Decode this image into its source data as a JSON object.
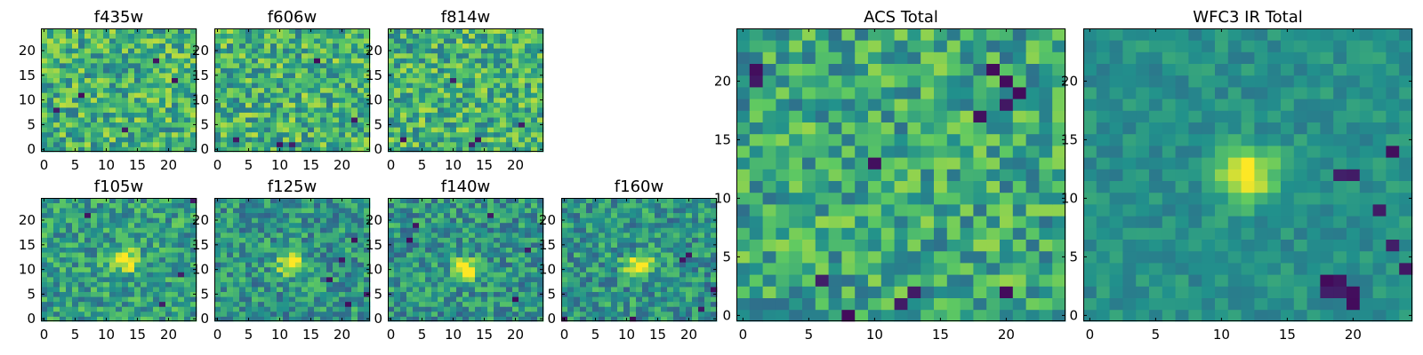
{
  "figure": {
    "background": "#ffffff"
  },
  "colormap": {
    "name": "viridis",
    "stops": [
      "#440154",
      "#3b528b",
      "#21918c",
      "#5ec962",
      "#fde725"
    ]
  },
  "chart_data": [
    {
      "id": "f435w",
      "type": "heatmap",
      "title": "f435w",
      "grid": [
        25,
        25
      ],
      "xlim": [
        0,
        24
      ],
      "ylim": [
        0,
        24
      ],
      "xticks": [
        0,
        5,
        10,
        15,
        20
      ],
      "yticks": [
        0,
        5,
        10,
        15,
        20
      ],
      "peak": null,
      "noise": 0.26,
      "base": 0.64,
      "seed": 11,
      "dark_spots": [
        [
          13,
          4
        ],
        [
          6,
          11
        ],
        [
          18,
          18
        ],
        [
          2,
          8
        ],
        [
          21,
          14
        ]
      ]
    },
    {
      "id": "f606w",
      "type": "heatmap",
      "title": "f606w",
      "grid": [
        25,
        25
      ],
      "xlim": [
        0,
        24
      ],
      "ylim": [
        0,
        24
      ],
      "xticks": [
        0,
        5,
        10,
        15,
        20
      ],
      "yticks": [
        0,
        5,
        10,
        15,
        20
      ],
      "peak": null,
      "noise": 0.26,
      "base": 0.64,
      "seed": 23,
      "dark_spots": [
        [
          12,
          1
        ],
        [
          10,
          1
        ],
        [
          3,
          2
        ],
        [
          16,
          18
        ],
        [
          22,
          6
        ]
      ]
    },
    {
      "id": "f814w",
      "type": "heatmap",
      "title": "f814w",
      "grid": [
        25,
        25
      ],
      "xlim": [
        0,
        24
      ],
      "ylim": [
        0,
        24
      ],
      "xticks": [
        0,
        5,
        10,
        15,
        20
      ],
      "yticks": [
        0,
        5,
        10,
        15,
        20
      ],
      "peak": null,
      "noise": 0.26,
      "base": 0.64,
      "seed": 37,
      "dark_spots": [
        [
          13,
          1
        ],
        [
          14,
          2
        ],
        [
          21,
          5
        ],
        [
          2,
          2
        ],
        [
          10,
          14
        ]
      ]
    },
    {
      "id": "f105w",
      "type": "heatmap",
      "title": "f105w",
      "grid": [
        25,
        25
      ],
      "xlim": [
        0,
        24
      ],
      "ylim": [
        0,
        24
      ],
      "xticks": [
        0,
        5,
        10,
        15,
        20
      ],
      "yticks": [
        0,
        5,
        10,
        15,
        20
      ],
      "peak": [
        13,
        12
      ],
      "noise": 0.22,
      "base": 0.56,
      "seed": 41,
      "dark_spots": [
        [
          24,
          24
        ],
        [
          22,
          9
        ],
        [
          19,
          3
        ],
        [
          7,
          21
        ]
      ]
    },
    {
      "id": "f125w",
      "type": "heatmap",
      "title": "f125w",
      "grid": [
        25,
        25
      ],
      "xlim": [
        0,
        24
      ],
      "ylim": [
        0,
        24
      ],
      "xticks": [
        0,
        5,
        10,
        15,
        20
      ],
      "yticks": [
        0,
        5,
        10,
        15,
        20
      ],
      "peak": [
        12,
        11
      ],
      "noise": 0.22,
      "base": 0.52,
      "seed": 53,
      "dark_spots": [
        [
          24,
          5
        ],
        [
          21,
          3
        ],
        [
          18,
          8
        ],
        [
          22,
          16
        ],
        [
          20,
          12
        ]
      ]
    },
    {
      "id": "f140w",
      "type": "heatmap",
      "title": "f140w",
      "grid": [
        25,
        25
      ],
      "xlim": [
        0,
        24
      ],
      "ylim": [
        0,
        24
      ],
      "xticks": [
        0,
        5,
        10,
        15,
        20
      ],
      "yticks": [
        0,
        5,
        10,
        15,
        20
      ],
      "peak": [
        12,
        10
      ],
      "noise": 0.22,
      "base": 0.52,
      "seed": 67,
      "dark_spots": [
        [
          4,
          19
        ],
        [
          3,
          16
        ],
        [
          20,
          4
        ],
        [
          22,
          14
        ],
        [
          16,
          21
        ]
      ]
    },
    {
      "id": "f160w",
      "type": "heatmap",
      "title": "f160w",
      "grid": [
        25,
        25
      ],
      "xlim": [
        0,
        24
      ],
      "ylim": [
        0,
        24
      ],
      "xticks": [
        0,
        5,
        10,
        15,
        20
      ],
      "yticks": [
        0,
        5,
        10,
        15,
        20
      ],
      "peak": [
        12,
        11
      ],
      "noise": 0.22,
      "base": 0.52,
      "seed": 79,
      "dark_spots": [
        [
          19,
          12
        ],
        [
          20,
          13
        ],
        [
          24,
          6
        ],
        [
          11,
          0
        ],
        [
          0,
          0
        ],
        [
          22,
          2
        ]
      ]
    },
    {
      "id": "acs-total",
      "type": "heatmap",
      "title": "ACS Total",
      "grid": [
        25,
        25
      ],
      "xlim": [
        0,
        24
      ],
      "ylim": [
        0,
        24
      ],
      "xticks": [
        0,
        5,
        10,
        15,
        20
      ],
      "yticks": [
        0,
        5,
        10,
        15,
        20
      ],
      "peak": null,
      "noise": 0.24,
      "base": 0.6,
      "seed": 97,
      "dark_spots": [
        [
          1,
          21
        ],
        [
          1,
          20
        ],
        [
          19,
          21
        ],
        [
          20,
          20
        ],
        [
          21,
          19
        ],
        [
          20,
          18
        ],
        [
          8,
          0
        ],
        [
          6,
          3
        ],
        [
          13,
          2
        ],
        [
          12,
          1
        ],
        [
          20,
          2
        ],
        [
          10,
          13
        ],
        [
          18,
          17
        ]
      ]
    },
    {
      "id": "wfc3-ir-total",
      "type": "heatmap",
      "title": "WFC3 IR Total",
      "grid": [
        25,
        25
      ],
      "xlim": [
        0,
        24
      ],
      "ylim": [
        0,
        24
      ],
      "xticks": [
        0,
        5,
        10,
        15,
        20
      ],
      "yticks": [
        0,
        5,
        10,
        15,
        20
      ],
      "peak": [
        12,
        12
      ],
      "noise": 0.1,
      "base": 0.5,
      "seed": 101,
      "dark_spots": [
        [
          19,
          12
        ],
        [
          20,
          12
        ],
        [
          18,
          2
        ],
        [
          19,
          2
        ],
        [
          20,
          2
        ],
        [
          19,
          3
        ],
        [
          18,
          3
        ],
        [
          20,
          1
        ],
        [
          22,
          9
        ],
        [
          23,
          6
        ],
        [
          24,
          4
        ],
        [
          23,
          14
        ]
      ]
    }
  ]
}
